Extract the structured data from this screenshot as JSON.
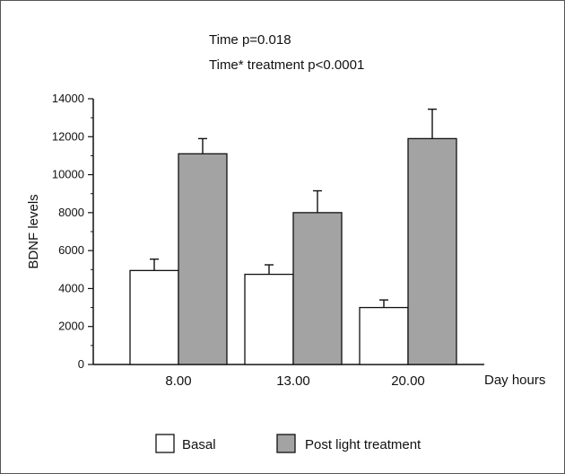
{
  "chart_data": {
    "type": "bar",
    "annotations": [
      "Time p=0.018",
      "Time* treatment p<0.0001"
    ],
    "xlabel": "Day hours",
    "ylabel": "BDNF levels",
    "categories": [
      "8.00",
      "13.00",
      "20.00"
    ],
    "ylim": [
      0,
      14000
    ],
    "yticks": [
      "0",
      "2000",
      "4000",
      "6000",
      "8000",
      "10000",
      "12000",
      "14000"
    ],
    "series": [
      {
        "name": "Basal",
        "color": "#ffffff",
        "values": [
          4950,
          4750,
          3000
        ],
        "errors": [
          600,
          500,
          400
        ]
      },
      {
        "name": "Post light treatment",
        "color": "#a3a3a3",
        "values": [
          11100,
          8000,
          11900
        ],
        "errors": [
          800,
          1150,
          1550
        ]
      }
    ],
    "legend_position": "bottom"
  }
}
